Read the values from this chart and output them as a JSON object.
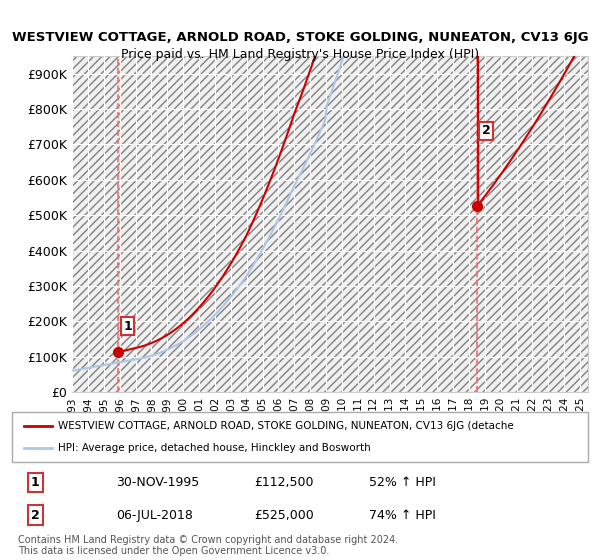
{
  "title1": "WESTVIEW COTTAGE, ARNOLD ROAD, STOKE GOLDING, NUNEATON, CV13 6JG",
  "title2": "Price paid vs. HM Land Registry's House Price Index (HPI)",
  "ylabel": "",
  "ylim": [
    0,
    950000
  ],
  "yticks": [
    0,
    100000,
    200000,
    300000,
    400000,
    500000,
    600000,
    700000,
    800000,
    900000
  ],
  "ytick_labels": [
    "£0",
    "£100K",
    "£200K",
    "£300K",
    "£400K",
    "£500K",
    "£600K",
    "£700K",
    "£800K",
    "£900K"
  ],
  "sale1_date": 1995.92,
  "sale1_price": 112500,
  "sale1_label": "1",
  "sale2_date": 2018.51,
  "sale2_price": 525000,
  "sale2_label": "2",
  "hpi_color": "#aec6e8",
  "price_color": "#cc0000",
  "vline_color": "#ff6666",
  "background_hatch_color": "#e8e8e8",
  "legend_line1": "WESTVIEW COTTAGE, ARNOLD ROAD, STOKE GOLDING, NUNEATON, CV13 6JG (detache",
  "legend_line2": "HPI: Average price, detached house, Hinckley and Bosworth",
  "table_row1": [
    "1",
    "30-NOV-1995",
    "£112,500",
    "52% ↑ HPI"
  ],
  "table_row2": [
    "2",
    "06-JUL-2018",
    "£525,000",
    "74% ↑ HPI"
  ],
  "footnote": "Contains HM Land Registry data © Crown copyright and database right 2024.\nThis data is licensed under the Open Government Licence v3.0.",
  "xmin": 1993.0,
  "xmax": 2025.5
}
